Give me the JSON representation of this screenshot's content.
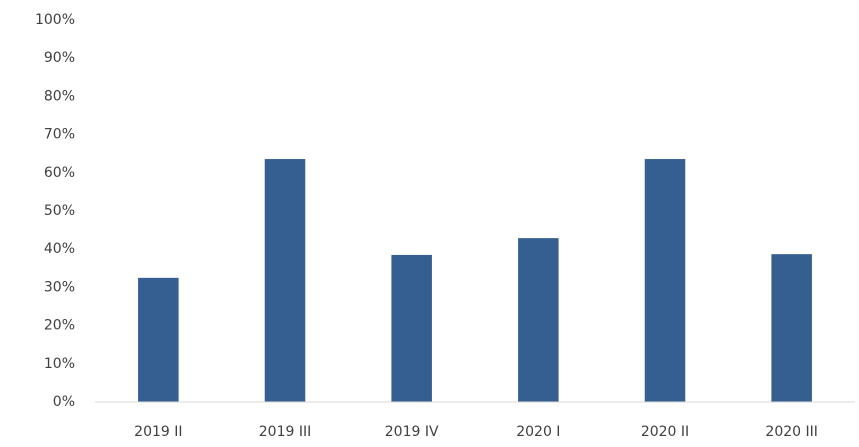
{
  "chart_data": {
    "type": "bar",
    "categories": [
      "2019 II",
      "2019 III",
      "2019 IV",
      "2020 I",
      "2020 II",
      "2020 III"
    ],
    "values": [
      32.5,
      63.6,
      38.5,
      42.9,
      63.6,
      38.7
    ],
    "color": "#365f91",
    "ylim": [
      0,
      100
    ],
    "yticks": [
      {
        "value": 0,
        "label": "0%"
      },
      {
        "value": 10,
        "label": "10%"
      },
      {
        "value": 20,
        "label": "20%"
      },
      {
        "value": 30,
        "label": "30%"
      },
      {
        "value": 40,
        "label": "40%"
      },
      {
        "value": 50,
        "label": "50%"
      },
      {
        "value": 60,
        "label": "60%"
      },
      {
        "value": 70,
        "label": "70%"
      },
      {
        "value": 80,
        "label": "80%"
      },
      {
        "value": 90,
        "label": "90%"
      },
      {
        "value": 100,
        "label": "100%"
      }
    ],
    "grid": false
  }
}
